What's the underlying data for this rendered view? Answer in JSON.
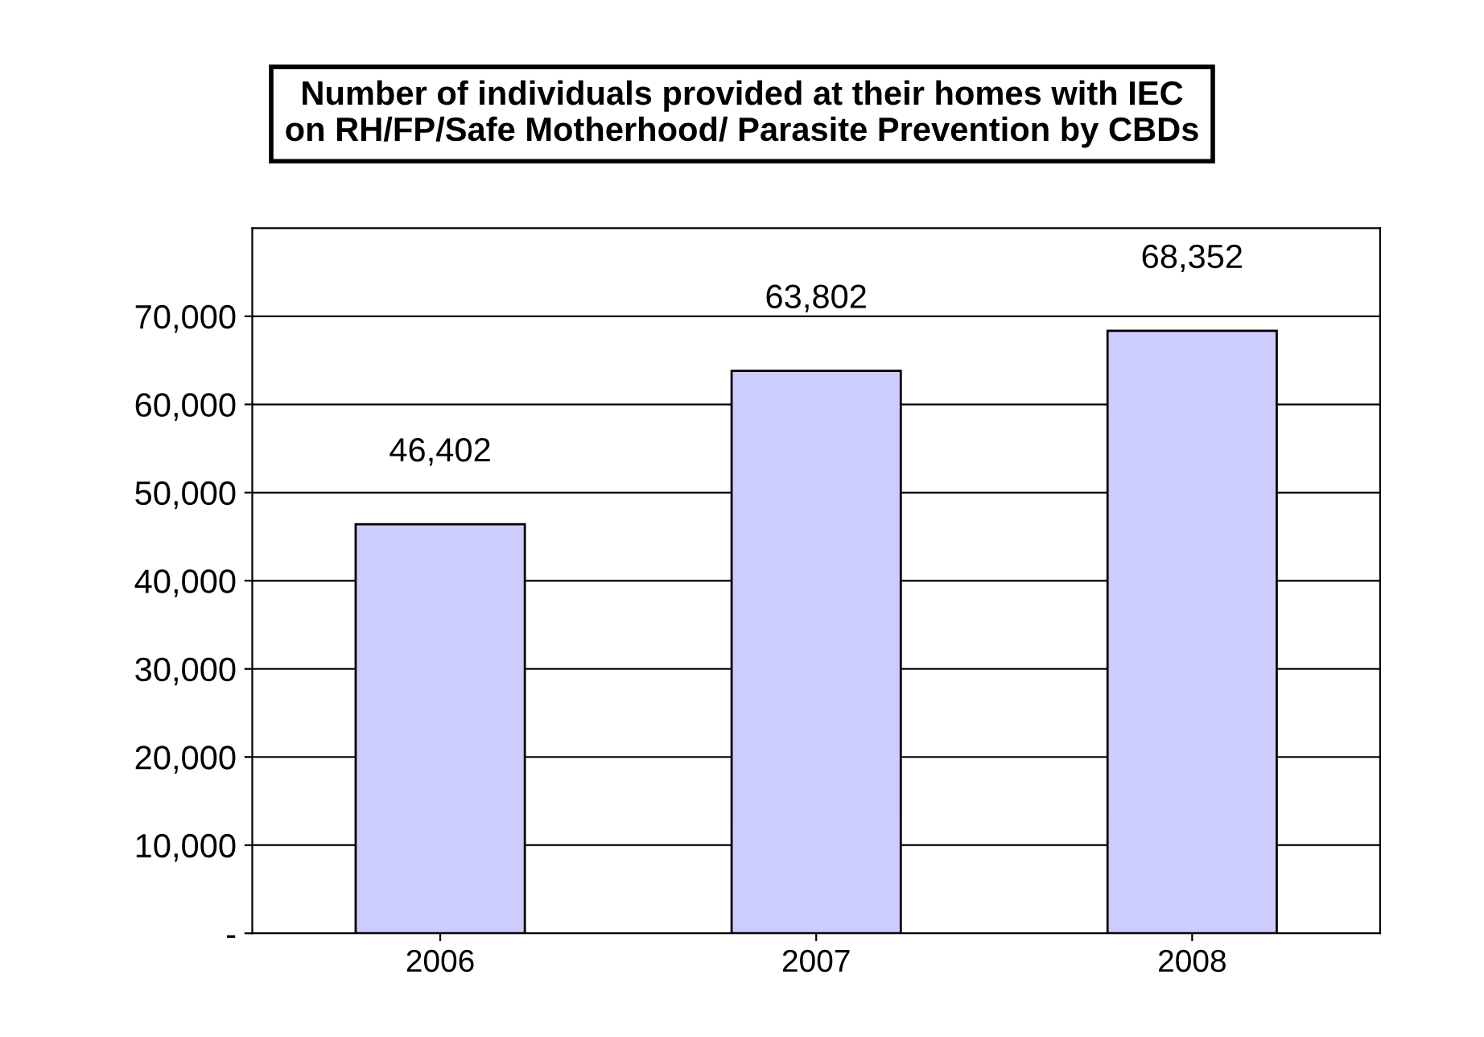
{
  "chart_data": {
    "type": "bar",
    "title": "Number of individuals provided at their homes with IEC\non RH/FP/Safe Motherhood/ Parasite Prevention by CBDs",
    "categories": [
      "2006",
      "2007",
      "2008"
    ],
    "values": [
      46402,
      63802,
      68352
    ],
    "value_labels": [
      "46,402",
      "63,802",
      "68,352"
    ],
    "color": "#ccccff",
    "ylim": [
      0,
      80000
    ],
    "yticks": [
      {
        "value": 0,
        "label": "-"
      },
      {
        "value": 10000,
        "label": "10,000"
      },
      {
        "value": 20000,
        "label": "20,000"
      },
      {
        "value": 30000,
        "label": "30,000"
      },
      {
        "value": 40000,
        "label": "40,000"
      },
      {
        "value": 50000,
        "label": "50,000"
      },
      {
        "value": 60000,
        "label": "60,000"
      },
      {
        "value": 70000,
        "label": "70,000"
      }
    ],
    "grid": "y"
  }
}
